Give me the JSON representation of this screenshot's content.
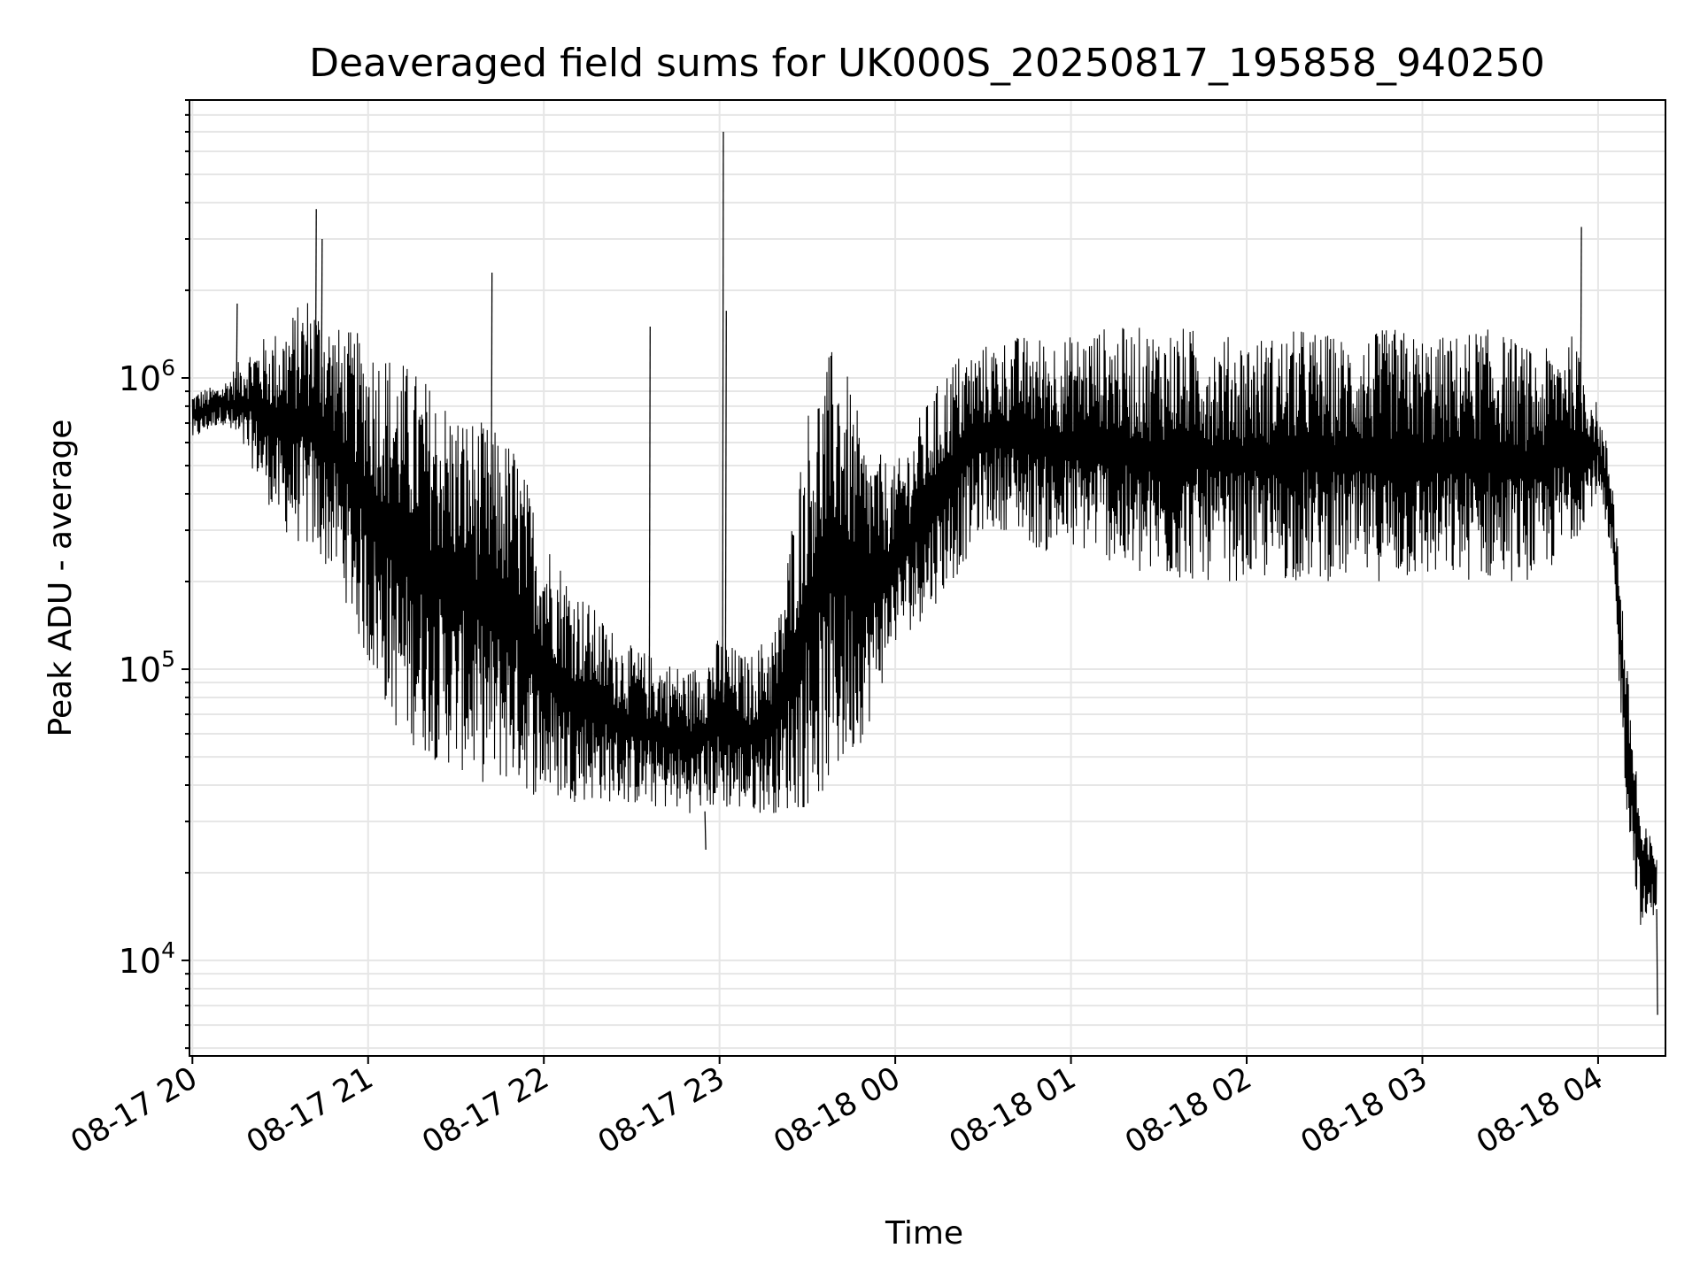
{
  "chart_data": {
    "type": "line",
    "title": "Deaveraged field sums for UK000S_20250817_195858_940250",
    "xlabel": "Time",
    "ylabel": "Peak ADU - average",
    "yscale": "log",
    "ylim": [
      4700,
      9000000
    ],
    "xlim": [
      "2025-08-17T19:59:00",
      "2025-08-18T04:23:00"
    ],
    "grid": true,
    "x_ticks": [
      "08-17 20",
      "08-17 21",
      "08-17 22",
      "08-17 23",
      "08-18 00",
      "08-18 01",
      "08-18 02",
      "08-18 03",
      "08-18 04"
    ],
    "y_ticks": [
      {
        "base": "10",
        "exp": "4",
        "value": 10000
      },
      {
        "base": "10",
        "exp": "5",
        "value": 100000
      },
      {
        "base": "10",
        "exp": "6",
        "value": 1000000
      }
    ],
    "line_color": "#000000",
    "series": [
      {
        "x": [
          "2025-08-17T20:00",
          "2025-08-17T20:10",
          "2025-08-17T20:20",
          "2025-08-17T20:30",
          "2025-08-17T20:40",
          "2025-08-17T20:50",
          "2025-08-17T21:00",
          "2025-08-17T21:10",
          "2025-08-17T21:20",
          "2025-08-17T21:30",
          "2025-08-17T21:40",
          "2025-08-17T21:50",
          "2025-08-17T22:00",
          "2025-08-17T22:10",
          "2025-08-17T22:20",
          "2025-08-17T22:30",
          "2025-08-17T22:40",
          "2025-08-17T22:50",
          "2025-08-17T23:00",
          "2025-08-17T23:10",
          "2025-08-17T23:20",
          "2025-08-17T23:30",
          "2025-08-17T23:40",
          "2025-08-17T23:50",
          "2025-08-18T00:00",
          "2025-08-18T00:10",
          "2025-08-18T00:20",
          "2025-08-18T00:30",
          "2025-08-18T00:40",
          "2025-08-18T00:50",
          "2025-08-18T01:00",
          "2025-08-18T01:10",
          "2025-08-18T01:20",
          "2025-08-18T01:30",
          "2025-08-18T01:40",
          "2025-08-18T01:50",
          "2025-08-18T02:00",
          "2025-08-18T02:10",
          "2025-08-18T02:20",
          "2025-08-18T02:30",
          "2025-08-18T02:40",
          "2025-08-18T02:50",
          "2025-08-18T03:00",
          "2025-08-18T03:10",
          "2025-08-18T03:20",
          "2025-08-18T03:30",
          "2025-08-18T03:40",
          "2025-08-18T03:50",
          "2025-08-18T04:00",
          "2025-08-18T04:05",
          "2025-08-18T04:10",
          "2025-08-18T04:15",
          "2025-08-18T04:20"
        ],
        "y_high": [
          900000,
          950000,
          1300000,
          1500000,
          2000000,
          1500000,
          1400000,
          1200000,
          1000000,
          800000,
          700000,
          600000,
          300000,
          200000,
          150000,
          120000,
          110000,
          100000,
          130000,
          110000,
          150000,
          800000,
          1400000,
          600000,
          500000,
          800000,
          1200000,
          1300000,
          1400000,
          1400000,
          1400000,
          1500000,
          1500000,
          1500000,
          1500000,
          1400000,
          1400000,
          1400000,
          1500000,
          1400000,
          1400000,
          1500000,
          1400000,
          1400000,
          1500000,
          1400000,
          1200000,
          1500000,
          800000,
          500000,
          100000,
          30000,
          25000
        ],
        "y_low": [
          600000,
          700000,
          500000,
          300000,
          250000,
          200000,
          100000,
          60000,
          50000,
          45000,
          40000,
          40000,
          35000,
          35000,
          35000,
          34000,
          33000,
          32000,
          33000,
          32000,
          32000,
          33000,
          40000,
          60000,
          120000,
          150000,
          200000,
          300000,
          300000,
          250000,
          250000,
          250000,
          200000,
          200000,
          200000,
          200000,
          200000,
          200000,
          200000,
          200000,
          200000,
          200000,
          200000,
          200000,
          200000,
          200000,
          200000,
          250000,
          400000,
          200000,
          30000,
          12000,
          15000
        ],
        "spikes": [
          {
            "x": "2025-08-17T20:15",
            "y": 1800000
          },
          {
            "x": "2025-08-17T20:42",
            "y": 3800000
          },
          {
            "x": "2025-08-17T20:44",
            "y": 3000000
          },
          {
            "x": "2025-08-17T21:42",
            "y": 2300000
          },
          {
            "x": "2025-08-17T22:36",
            "y": 1500000
          },
          {
            "x": "2025-08-17T23:01",
            "y": 7000000
          },
          {
            "x": "2025-08-17T23:02",
            "y": 1700000
          },
          {
            "x": "2025-08-18T03:54",
            "y": 3300000
          },
          {
            "x": "2025-08-17T22:55",
            "y": 24000
          },
          {
            "x": "2025-08-18T04:20",
            "y": 6500
          }
        ]
      }
    ]
  }
}
